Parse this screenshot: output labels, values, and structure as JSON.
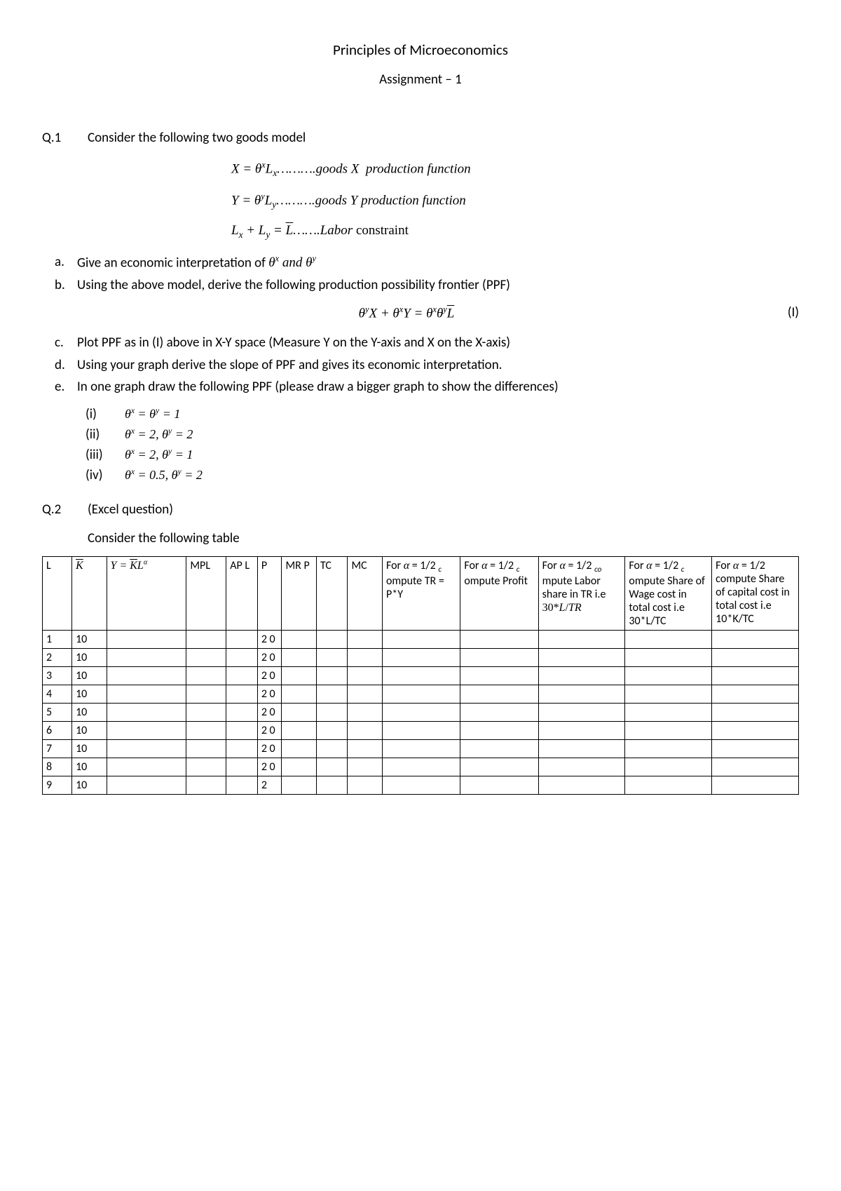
{
  "title": "Principles of Microeconomics",
  "subtitle": "Assignment – 1",
  "q1": {
    "label": "Q.1",
    "prompt": "Consider the following two goods model",
    "eq1_html": "X = θ<sup>x</sup>L<sub>x</sub>……….goods X &nbsp;production function",
    "eq2_html": "Y = θ<sup>y</sup>L<sub>y</sub>……….goods Y production function",
    "eq3_html": "L<sub>x</sub> + L<sub>y</sub> = <span class='overline'>L</span>…….Labor <span class='rm'>constraint</span>",
    "parts": {
      "a": {
        "letter": "a.",
        "text_html": "Give an economic interpretation of <span class='inline-math'>θ<sup>x</sup> and θ<sup>y</sup></span>"
      },
      "b": {
        "letter": "b.",
        "text": "Using the above model, derive the following production possibility frontier (PPF)"
      },
      "c": {
        "letter": "c.",
        "text": "Plot PPF as in (I) above in X-Y space (Measure Y on the Y-axis and X on the X-axis)"
      },
      "d": {
        "letter": "d.",
        "text": "Using your graph derive the slope of PPF and gives its economic interpretation."
      },
      "e": {
        "letter": "e.",
        "text": "In one graph draw the following PPF (please draw a bigger graph to show the differences)"
      }
    },
    "ppf_eq_html": "θ<sup>y</sup>X + θ<sup>x</sup>Y = θ<sup>x</sup>θ<sup>y</sup><span class='overline'>L</span>",
    "ppf_tag": "(I)",
    "sub": {
      "i": {
        "num": "(i)",
        "eq_html": "θ<sup>x</sup> = θ<sup>y</sup> = 1"
      },
      "ii": {
        "num": "(ii)",
        "eq_html": "θ<sup>x</sup> = 2, θ<sup>y</sup> = 2"
      },
      "iii": {
        "num": "(iii)",
        "eq_html": "θ<sup>x</sup> = 2, θ<sup>y</sup> = 1"
      },
      "iv": {
        "num": "(iv)",
        "eq_html": "θ<sup>x</sup> = 0.5, θ<sup>y</sup> = 2"
      }
    }
  },
  "q2": {
    "label": "Q.2",
    "prompt": "(Excel question)",
    "sub": "Consider the following table"
  },
  "table": {
    "headers": {
      "L": "L",
      "K_html": "<span class='hdr-math overline' style='font-style:italic'>K</span>",
      "Y_html": "<span class='hdr-math' style='font-style:italic'>Y = <span class='overline'>K</span>L<sup>α</sup></span>",
      "MPL": "MPL",
      "APL": "AP L",
      "P": "P",
      "MRP": "MR P",
      "TC": "TC",
      "MC": "MC",
      "F1_html": "For <span class='hdr-math' style='font-style:italic'>α</span> = 1/2 <sub>c</sub> ompute TR = P*Y",
      "F2_html": "For <span class='hdr-math' style='font-style:italic'>α</span> = 1/2 <sub>c</sub> ompute Profit",
      "F3_html": "For <span class='hdr-math' style='font-style:italic'>α</span> = 1/2 <sub>co</sub> mpute Labor share in TR i.e <span class='hdr-math'>30*<span style='font-style:italic'>L</span>/<span style='font-style:italic'>TR</span></span>",
      "F4_html": "For <span class='hdr-math' style='font-style:italic'>α</span> = 1/2 <sub>c</sub> ompute Share of Wage cost in total cost i.e 30*L/TC",
      "F5_html": "For <span class='hdr-math' style='font-style:italic'>α</span> = 1/2 compute Share of capital cost in total cost i.e 10*K/TC"
    },
    "rows": [
      {
        "L": "1",
        "K": "10",
        "P": "2 0"
      },
      {
        "L": "2",
        "K": "10",
        "P": "2 0"
      },
      {
        "L": "3",
        "K": "10",
        "P": "2 0"
      },
      {
        "L": "4",
        "K": "10",
        "P": "2 0"
      },
      {
        "L": "5",
        "K": "10",
        "P": "2 0"
      },
      {
        "L": "6",
        "K": "10",
        "P": "2 0"
      },
      {
        "L": "7",
        "K": "10",
        "P": "2 0"
      },
      {
        "L": "8",
        "K": "10",
        "P": "2 0"
      },
      {
        "L": "9",
        "K": "10",
        "P": "2"
      }
    ]
  }
}
